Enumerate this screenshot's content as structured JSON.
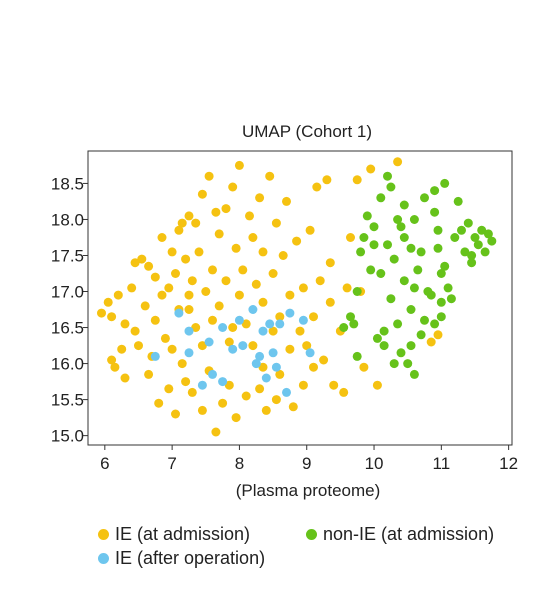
{
  "colors": {
    "ie_admission": "#f5c211",
    "ie_after_operation": "#6ec6ee",
    "non_ie_admission": "#66c21a"
  },
  "chart_data": {
    "type": "scatter",
    "title": "UMAP (Cohort 1)",
    "xlabel": "(Plasma proteome)",
    "ylabel": "",
    "xlim": [
      5.75,
      12.05
    ],
    "ylim": [
      14.87,
      18.95
    ],
    "x_ticks": [
      6,
      7,
      8,
      9,
      10,
      11,
      12
    ],
    "y_ticks": [
      15.0,
      15.5,
      16.0,
      16.5,
      17.0,
      17.5,
      18.0,
      18.5
    ],
    "x_tick_labels": [
      "6",
      "7",
      "8",
      "9",
      "10",
      "11",
      "12"
    ],
    "y_tick_labels": [
      "15.0",
      "15.5",
      "16.0",
      "16.5",
      "17.0",
      "17.5",
      "18.0",
      "18.5"
    ],
    "grid": false,
    "legend_position": "bottom",
    "series": [
      {
        "name": "IE (at admission)",
        "color": "#f5c211",
        "points": [
          [
            5.95,
            16.7
          ],
          [
            6.05,
            16.85
          ],
          [
            6.1,
            16.65
          ],
          [
            6.1,
            16.05
          ],
          [
            6.15,
            15.95
          ],
          [
            6.2,
            16.95
          ],
          [
            6.25,
            16.2
          ],
          [
            6.3,
            16.55
          ],
          [
            6.3,
            15.8
          ],
          [
            6.4,
            17.05
          ],
          [
            6.45,
            16.45
          ],
          [
            6.5,
            16.25
          ],
          [
            6.55,
            17.45
          ],
          [
            6.6,
            16.8
          ],
          [
            6.65,
            15.85
          ],
          [
            6.65,
            17.35
          ],
          [
            6.7,
            16.1
          ],
          [
            6.75,
            17.2
          ],
          [
            6.75,
            16.6
          ],
          [
            6.8,
            15.45
          ],
          [
            6.85,
            16.95
          ],
          [
            6.85,
            17.75
          ],
          [
            6.9,
            16.35
          ],
          [
            6.95,
            17.05
          ],
          [
            6.95,
            15.65
          ],
          [
            7.0,
            17.55
          ],
          [
            7.0,
            16.2
          ],
          [
            7.05,
            17.25
          ],
          [
            7.05,
            15.3
          ],
          [
            7.1,
            17.85
          ],
          [
            7.1,
            16.75
          ],
          [
            7.15,
            17.95
          ],
          [
            7.15,
            16.0
          ],
          [
            7.2,
            17.45
          ],
          [
            7.2,
            15.75
          ],
          [
            7.25,
            18.05
          ],
          [
            7.25,
            16.95
          ],
          [
            7.3,
            17.15
          ],
          [
            7.3,
            15.6
          ],
          [
            7.35,
            17.95
          ],
          [
            7.35,
            16.5
          ],
          [
            7.4,
            17.55
          ],
          [
            7.45,
            16.25
          ],
          [
            7.45,
            18.35
          ],
          [
            7.5,
            17.0
          ],
          [
            7.55,
            15.9
          ],
          [
            7.55,
            18.6
          ],
          [
            7.6,
            17.3
          ],
          [
            7.6,
            16.6
          ],
          [
            7.65,
            18.1
          ],
          [
            7.65,
            15.05
          ],
          [
            7.7,
            17.8
          ],
          [
            7.7,
            16.8
          ],
          [
            7.75,
            15.45
          ],
          [
            7.8,
            18.15
          ],
          [
            7.8,
            17.15
          ],
          [
            7.85,
            16.3
          ],
          [
            7.85,
            15.7
          ],
          [
            7.9,
            18.45
          ],
          [
            7.95,
            17.6
          ],
          [
            7.95,
            15.25
          ],
          [
            8.0,
            16.95
          ],
          [
            8.0,
            18.75
          ],
          [
            8.05,
            17.3
          ],
          [
            8.1,
            16.55
          ],
          [
            8.1,
            15.55
          ],
          [
            8.15,
            18.05
          ],
          [
            8.2,
            17.75
          ],
          [
            8.2,
            16.25
          ],
          [
            8.25,
            17.1
          ],
          [
            8.3,
            18.3
          ],
          [
            8.3,
            15.65
          ],
          [
            8.35,
            16.85
          ],
          [
            8.35,
            17.55
          ],
          [
            8.4,
            15.35
          ],
          [
            8.45,
            18.6
          ],
          [
            8.5,
            17.25
          ],
          [
            8.5,
            16.45
          ],
          [
            8.55,
            17.95
          ],
          [
            8.6,
            16.65
          ],
          [
            8.6,
            15.85
          ],
          [
            8.65,
            17.5
          ],
          [
            8.7,
            18.25
          ],
          [
            8.75,
            16.2
          ],
          [
            8.75,
            16.95
          ],
          [
            8.8,
            15.4
          ],
          [
            8.85,
            17.7
          ],
          [
            8.9,
            16.45
          ],
          [
            8.95,
            17.05
          ],
          [
            8.95,
            15.7
          ],
          [
            9.0,
            16.25
          ],
          [
            9.05,
            17.85
          ],
          [
            9.1,
            16.65
          ],
          [
            9.1,
            15.95
          ],
          [
            9.15,
            18.45
          ],
          [
            9.2,
            17.15
          ],
          [
            9.25,
            16.05
          ],
          [
            9.3,
            18.55
          ],
          [
            9.35,
            17.4
          ],
          [
            9.4,
            15.7
          ],
          [
            9.5,
            16.45
          ],
          [
            9.55,
            15.6
          ],
          [
            9.6,
            17.05
          ],
          [
            9.65,
            17.75
          ],
          [
            9.75,
            18.55
          ],
          [
            9.8,
            17.0
          ],
          [
            9.85,
            15.95
          ],
          [
            9.95,
            18.7
          ],
          [
            10.05,
            15.7
          ],
          [
            10.35,
            18.8
          ],
          [
            10.85,
            16.3
          ],
          [
            10.95,
            16.4
          ],
          [
            8.35,
            15.95
          ],
          [
            7.25,
            16.75
          ],
          [
            7.45,
            15.35
          ],
          [
            6.45,
            17.4
          ],
          [
            8.55,
            15.5
          ],
          [
            9.35,
            16.85
          ],
          [
            7.9,
            16.5
          ]
        ]
      },
      {
        "name": "IE (after operation)",
        "color": "#6ec6ee",
        "points": [
          [
            6.75,
            16.1
          ],
          [
            7.1,
            16.7
          ],
          [
            7.25,
            16.45
          ],
          [
            7.25,
            16.15
          ],
          [
            7.45,
            15.7
          ],
          [
            7.55,
            16.3
          ],
          [
            7.75,
            16.5
          ],
          [
            7.75,
            15.75
          ],
          [
            7.9,
            16.2
          ],
          [
            8.0,
            16.6
          ],
          [
            8.05,
            16.25
          ],
          [
            8.2,
            16.75
          ],
          [
            8.3,
            16.1
          ],
          [
            8.35,
            16.45
          ],
          [
            8.4,
            15.8
          ],
          [
            8.45,
            16.55
          ],
          [
            8.5,
            16.15
          ],
          [
            8.55,
            15.95
          ],
          [
            8.6,
            16.55
          ],
          [
            8.7,
            15.6
          ],
          [
            8.75,
            16.7
          ],
          [
            8.95,
            16.6
          ],
          [
            9.05,
            16.15
          ],
          [
            7.6,
            15.85
          ],
          [
            8.25,
            16.0
          ]
        ]
      },
      {
        "name": "non-IE (at admission)",
        "color": "#66c21a",
        "points": [
          [
            9.55,
            16.5
          ],
          [
            9.65,
            16.65
          ],
          [
            9.7,
            16.55
          ],
          [
            9.75,
            16.1
          ],
          [
            9.75,
            17.0
          ],
          [
            9.8,
            17.55
          ],
          [
            9.85,
            17.75
          ],
          [
            9.9,
            18.05
          ],
          [
            9.95,
            17.3
          ],
          [
            10.0,
            17.9
          ],
          [
            10.05,
            16.35
          ],
          [
            10.1,
            17.25
          ],
          [
            10.1,
            18.3
          ],
          [
            10.15,
            16.25
          ],
          [
            10.2,
            17.65
          ],
          [
            10.2,
            18.6
          ],
          [
            10.25,
            16.9
          ],
          [
            10.3,
            17.45
          ],
          [
            10.35,
            16.55
          ],
          [
            10.35,
            18.0
          ],
          [
            10.4,
            16.15
          ],
          [
            10.45,
            17.15
          ],
          [
            10.45,
            18.2
          ],
          [
            10.5,
            16.0
          ],
          [
            10.55,
            17.6
          ],
          [
            10.55,
            16.75
          ],
          [
            10.6,
            18.0
          ],
          [
            10.6,
            15.85
          ],
          [
            10.65,
            17.3
          ],
          [
            10.7,
            17.55
          ],
          [
            10.7,
            16.4
          ],
          [
            10.75,
            18.3
          ],
          [
            10.8,
            17.0
          ],
          [
            10.85,
            16.95
          ],
          [
            10.9,
            18.1
          ],
          [
            10.95,
            17.6
          ],
          [
            11.0,
            17.25
          ],
          [
            11.0,
            16.85
          ],
          [
            11.05,
            18.5
          ],
          [
            11.1,
            17.05
          ],
          [
            11.15,
            16.9
          ],
          [
            11.2,
            17.75
          ],
          [
            11.25,
            18.25
          ],
          [
            11.3,
            17.85
          ],
          [
            11.35,
            17.55
          ],
          [
            11.4,
            17.95
          ],
          [
            11.45,
            17.4
          ],
          [
            11.5,
            17.75
          ],
          [
            11.55,
            17.65
          ],
          [
            11.6,
            17.85
          ],
          [
            11.65,
            17.55
          ],
          [
            11.7,
            17.8
          ],
          [
            11.75,
            17.7
          ],
          [
            11.45,
            17.5
          ],
          [
            10.75,
            16.6
          ],
          [
            10.3,
            16.0
          ],
          [
            10.9,
            16.55
          ],
          [
            10.55,
            16.25
          ],
          [
            10.15,
            16.45
          ],
          [
            11.05,
            17.35
          ],
          [
            10.95,
            17.85
          ],
          [
            10.45,
            17.75
          ],
          [
            10.25,
            18.45
          ],
          [
            10.9,
            18.4
          ],
          [
            10.0,
            17.65
          ],
          [
            10.6,
            17.05
          ],
          [
            11.0,
            16.65
          ],
          [
            10.4,
            17.9
          ]
        ]
      }
    ]
  },
  "legend": {
    "items": [
      {
        "label": "IE (at admission)",
        "color": "#f5c211"
      },
      {
        "label": "non-IE (at admission)",
        "color": "#66c21a"
      },
      {
        "label": "IE (after operation)",
        "color": "#6ec6ee"
      }
    ]
  }
}
